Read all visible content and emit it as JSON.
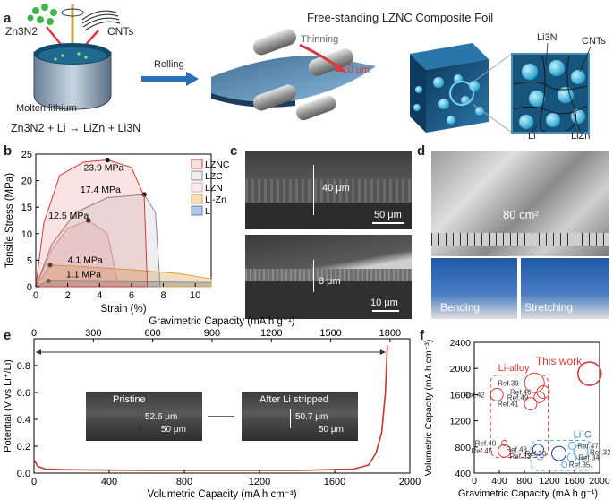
{
  "panels": {
    "a": "a",
    "b": "b",
    "c": "c",
    "d": "d",
    "e": "e",
    "f": "f"
  },
  "panel_a": {
    "zn3n2": "Zn3N2",
    "cnts_left": "CNTs",
    "molten_lithium": "Molten lithium",
    "equation": "Zn3N2 + Li → LiZn + Li3N",
    "rolling": "Rolling",
    "thinning": "Thinning",
    "thickness": "<10 μm",
    "title": "Free-standing LZNC Composite Foil",
    "li3n": "Li3N",
    "cnts_right": "CNTs",
    "li": "Li",
    "lizn": "LiZn"
  },
  "panel_c": {
    "thick1": "40 μm",
    "scale1": "50 μm",
    "thick2": "8 μm",
    "scale2": "10 μm"
  },
  "panel_d": {
    "area": "80 cm²",
    "bending": "Bending",
    "stretching": "Stretching"
  },
  "panel_e_insets": {
    "pristine": "Pristine",
    "pristine_thick": "52.6 μm",
    "pristine_scale": "50 μm",
    "after": "After Li stripped",
    "after_thick": "50.7 μm",
    "after_scale": "50 μm"
  },
  "chart_data": [
    {
      "panel": "b",
      "type": "line",
      "xlabel": "Strain (%)",
      "ylabel": "Tensile Stress (MPa)",
      "xlim": [
        0,
        11
      ],
      "ylim": [
        0,
        25
      ],
      "xticks": [
        "0",
        "2",
        "4",
        "6",
        "8",
        "10"
      ],
      "yticks": [
        "0",
        "5",
        "10",
        "15",
        "20",
        "25"
      ],
      "legend_position": "right",
      "series": [
        {
          "name": "LZNC",
          "color": "#d93a3a",
          "peak": [
            4.5,
            23.9
          ],
          "x": [
            0,
            0.5,
            1.5,
            3,
            4.5,
            6,
            6.8,
            7.0
          ],
          "y": [
            0,
            12,
            21,
            23.5,
            23.9,
            22.5,
            17,
            0
          ]
        },
        {
          "name": "LZC",
          "color": "#888888",
          "peak": [
            6.8,
            17.4
          ],
          "x": [
            0,
            1,
            2.5,
            4.5,
            6.8,
            7.5,
            7.8
          ],
          "y": [
            0,
            8,
            14,
            16.8,
            17.4,
            14,
            0
          ]
        },
        {
          "name": "LZN",
          "color": "#e8a0a0",
          "peak": [
            3.3,
            12.5
          ],
          "x": [
            0,
            1,
            2,
            3.3,
            4.5,
            5.2
          ],
          "y": [
            0,
            7,
            11,
            12.5,
            10,
            0
          ]
        },
        {
          "name": "Li-Zn",
          "color": "#d9a441",
          "peak": [
            0.9,
            4.1
          ],
          "x": [
            0,
            0.9,
            3,
            6,
            9,
            11
          ],
          "y": [
            0,
            4.1,
            3.8,
            3.2,
            2.5,
            1.5
          ]
        },
        {
          "name": "Li",
          "color": "#5b7fc7",
          "peak": [
            0.8,
            1.1
          ],
          "x": [
            0,
            0.8,
            4,
            8,
            11
          ],
          "y": [
            0,
            1.1,
            1.0,
            0.9,
            0.8
          ]
        }
      ],
      "annotations": [
        "23.9 MPa",
        "17.4 MPa",
        "12.5 MPa",
        "4.1 MPa",
        "1.1 MPa"
      ]
    },
    {
      "panel": "e",
      "type": "line",
      "xlabel": "Volumetric Capacity (mA h cm⁻³)",
      "x2label": "Gravimetric Capacity (mA h g⁻¹)",
      "ylabel": "Potential (V vs Li⁺/Li)",
      "xlim": [
        0,
        2000
      ],
      "x2lim": [
        0,
        1900
      ],
      "ylim": [
        0,
        1.0
      ],
      "xticks": [
        "0",
        "400",
        "800",
        "1200",
        "1600",
        "2000"
      ],
      "x2ticks": [
        "0",
        "300",
        "600",
        "900",
        "1200",
        "1500",
        "1800"
      ],
      "yticks": [
        "0.0",
        "0.2",
        "0.4",
        "0.6",
        "0.8"
      ],
      "series": [
        {
          "name": "",
          "color": "#c0392b",
          "x": [
            0,
            20,
            60,
            200,
            600,
            1000,
            1400,
            1700,
            1780,
            1820,
            1850,
            1870,
            1880
          ],
          "y": [
            0.1,
            0.05,
            0.03,
            0.025,
            0.02,
            0.02,
            0.02,
            0.03,
            0.06,
            0.15,
            0.3,
            0.6,
            0.95
          ]
        }
      ]
    },
    {
      "panel": "f",
      "type": "scatter",
      "xlabel": "Gravimetric Capacity (mA h g⁻¹)",
      "ylabel": "Volumetric Capacity (mA h cm⁻³)",
      "xlim": [
        0,
        2000
      ],
      "ylim": [
        400,
        2400
      ],
      "xticks": [
        "0",
        "400",
        "800",
        "1200",
        "1600",
        "2000"
      ],
      "yticks": [
        "400",
        "800",
        "1200",
        "1600",
        "2000",
        "2400"
      ],
      "groups": [
        "Li-alloy",
        "Li-C"
      ],
      "highlight": "This work",
      "points": [
        {
          "label": "This work",
          "x": 1840,
          "y": 1920,
          "r": 13,
          "color": "#d93a3a"
        },
        {
          "label": "Ref.42",
          "x": 360,
          "y": 1600,
          "r": 7,
          "color": "#d93a3a"
        },
        {
          "label": "Ref.39",
          "x": 960,
          "y": 1780,
          "r": 11,
          "color": "#d93a3a"
        },
        {
          "label": "Ref.46",
          "x": 1100,
          "y": 1640,
          "r": 7,
          "color": "#d93a3a"
        },
        {
          "label": "Ref.49",
          "x": 1040,
          "y": 1560,
          "r": 6,
          "color": "#d93a3a"
        },
        {
          "label": "Ref.41",
          "x": 900,
          "y": 1460,
          "r": 7,
          "color": "#d93a3a"
        },
        {
          "label": "Ref.40",
          "x": 480,
          "y": 860,
          "r": 3,
          "color": "#d93a3a"
        },
        {
          "label": "Ref.45",
          "x": 480,
          "y": 740,
          "r": 7,
          "color": "#d93a3a"
        },
        {
          "label": "Ref.48",
          "x": 1020,
          "y": 760,
          "r": 6,
          "color": "#1a3f8f"
        },
        {
          "label": "Ref.30",
          "x": 1350,
          "y": 700,
          "r": 8,
          "color": "#1a3f8f"
        },
        {
          "label": "Ref.33",
          "x": 1050,
          "y": 660,
          "r": 4,
          "color": "#5aa9d6"
        },
        {
          "label": "Ref.47",
          "x": 1560,
          "y": 820,
          "r": 4,
          "color": "#5aa9d6"
        },
        {
          "label": "Ref.32",
          "x": 1700,
          "y": 720,
          "r": 8,
          "color": "#5aa9d6"
        },
        {
          "label": "Ref.34",
          "x": 1560,
          "y": 640,
          "r": 5,
          "color": "#5aa9d6"
        },
        {
          "label": "Ref.35",
          "x": 1440,
          "y": 530,
          "r": 3,
          "color": "#5aa9d6"
        }
      ]
    }
  ]
}
